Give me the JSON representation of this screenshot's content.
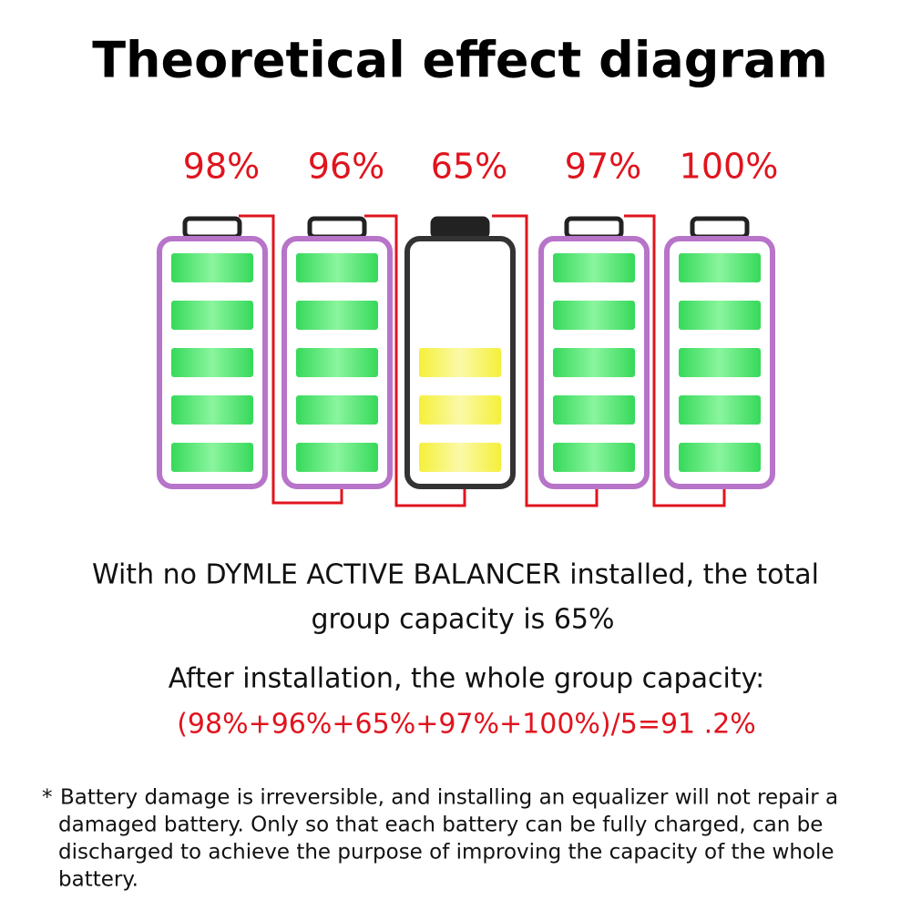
{
  "title": "Theoretical effect diagram",
  "batteries": [
    {
      "label": "98%"
    },
    {
      "label": "96%"
    },
    {
      "label": "65%"
    },
    {
      "label": "97%"
    },
    {
      "label": "100%"
    }
  ],
  "description": [
    "With no DYMLE ACTIVE BALANCER installed, the total",
    "group capacity is 65%"
  ],
  "after": "After installation, the whole group capacity:",
  "formula": "(98%+96%+65%+97%+100%)/5=91 .2%",
  "footnote": {
    "marker": "*",
    "lines": [
      "Battery damage is irreversible, and installing an equalizer will not repair a",
      "damaged battery. Only so that each battery can be fully charged, can be",
      "discharged to achieve the purpose of improving the capacity of the whole",
      "battery."
    ]
  }
}
